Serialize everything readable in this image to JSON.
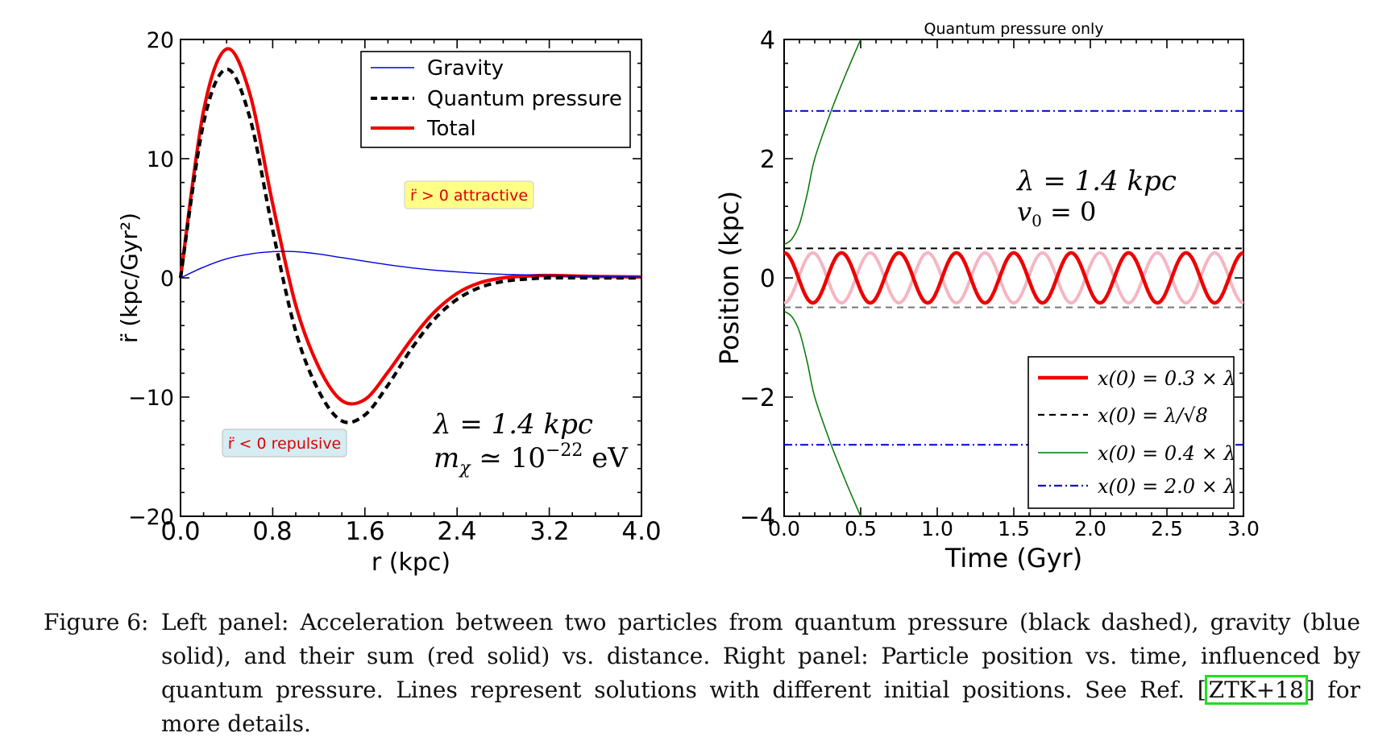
{
  "chart_data": [
    {
      "type": "line",
      "panel": "left",
      "title": "",
      "xlabel": "r (kpc)",
      "ylabel": "r̈ (kpc/Gyr²)",
      "xlim": [
        0.0,
        4.0
      ],
      "ylim": [
        -20,
        20
      ],
      "xticks": [
        "0.0",
        "0.8",
        "1.6",
        "2.4",
        "3.2",
        "4.0"
      ],
      "yticks": [
        "20",
        "10",
        "0",
        "−10",
        "−20"
      ],
      "x": [
        0.0,
        0.2,
        0.4,
        0.6,
        0.8,
        1.0,
        1.2,
        1.4,
        1.6,
        1.8,
        2.0,
        2.2,
        2.4,
        2.6,
        2.8,
        3.0,
        3.2,
        3.6,
        4.0
      ],
      "series": [
        {
          "name": "Gravity",
          "color": "#0000dd",
          "style": "solid",
          "values": [
            0.0,
            0.9,
            1.6,
            2.0,
            2.2,
            2.2,
            2.0,
            1.7,
            1.4,
            1.1,
            0.85,
            0.65,
            0.5,
            0.38,
            0.3,
            0.25,
            0.2,
            0.12,
            0.08
          ]
        },
        {
          "name": "Quantum pressure",
          "color": "#000000",
          "style": "dashed",
          "values": [
            0.0,
            13.0,
            17.5,
            13.5,
            4.0,
            -4.5,
            -9.5,
            -12.0,
            -11.5,
            -9.0,
            -6.0,
            -3.5,
            -1.8,
            -0.8,
            -0.3,
            -0.1,
            0.0,
            0.0,
            0.0
          ]
        },
        {
          "name": "Total",
          "color": "#ee0000",
          "style": "solid",
          "values": [
            0.0,
            14.0,
            19.2,
            15.5,
            6.2,
            -2.3,
            -7.5,
            -10.3,
            -10.2,
            -7.9,
            -5.2,
            -2.9,
            -1.3,
            -0.4,
            0.0,
            0.15,
            0.2,
            0.12,
            0.08
          ]
        }
      ],
      "legend": "top-right",
      "annotations": {
        "attractive": "r̈ > 0 attractive",
        "repulsive": "r̈ < 0 repulsive",
        "lambda": "λ = 1.4 kpc",
        "mass": "m",
        "mass_sub": "χ",
        "mass_rel": " ≃ 10",
        "mass_exp": "−22",
        "mass_unit": " eV"
      }
    },
    {
      "type": "line",
      "panel": "right",
      "title": "Quantum pressure only",
      "xlabel": "Time (Gyr)",
      "ylabel": "Position (kpc)",
      "xlim": [
        0.0,
        3.0
      ],
      "ylim": [
        -4,
        4
      ],
      "xticks": [
        "0.0",
        "0.5",
        "1.0",
        "1.5",
        "2.0",
        "2.5",
        "3.0"
      ],
      "yticks": [
        "4",
        "2",
        "0",
        "−2",
        "−4"
      ],
      "series": [
        {
          "name": "x(0) = 0.3 × λ",
          "color": "#ee0000",
          "style": "solid",
          "amplitude": 0.42,
          "period": 0.375,
          "mirror_color": "#f4b6c2"
        },
        {
          "name": "x(0) = λ/√8",
          "color": "#000000",
          "style": "dashed",
          "value": 0.495,
          "mirror": true
        },
        {
          "name": "x(0) = 0.4 × λ",
          "color": "#007700",
          "style": "solid",
          "x": [
            0.0,
            0.05,
            0.1,
            0.15,
            0.2,
            0.3,
            0.4,
            0.5
          ],
          "values": [
            0.56,
            0.65,
            0.9,
            1.4,
            2.0,
            2.75,
            3.4,
            4.0
          ],
          "mirror": true
        },
        {
          "name": "x(0) = 2.0 × λ",
          "color": "#0000cc",
          "style": "dashdot",
          "value": 2.8,
          "mirror": true
        }
      ],
      "legend": "bottom-right",
      "annotations": {
        "lambda": "λ = 1.4 kpc",
        "v0_label": "v",
        "v0_sub": "0",
        "v0_rest": " = 0"
      }
    }
  ],
  "caption": {
    "label": "Figure 6:",
    "text_before": "Left panel: Acceleration between two particles from quantum pressure (black dashed), gravity (blue solid), and their sum (red solid) vs. distance. Right panel: Particle position vs. time, influenced by quantum pressure. Lines represent solutions with different initial positions. See Ref. ",
    "citation": "ZTK+18",
    "cite_open": "[",
    "cite_close": "]",
    "text_after": " for more details."
  }
}
